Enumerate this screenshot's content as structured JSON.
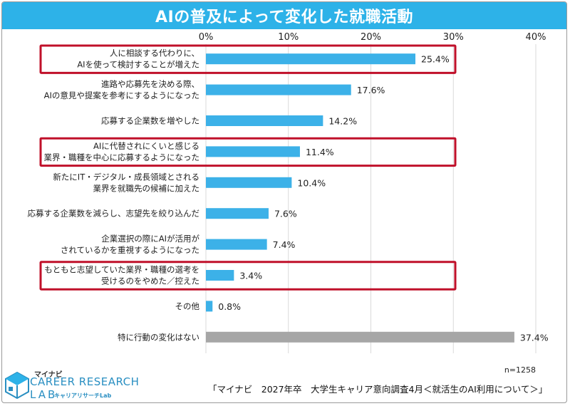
{
  "title": "AIの普及によって変化した就職活動",
  "n_label": "n=1258",
  "source": "「マイナビ　2027年卒　大学生キャリア意向調査4月＜就活生のAI利用について＞」",
  "logo": {
    "small": "マイナビ",
    "main": "CAREER RESEARCH",
    "lab": "LAB",
    "jp": "キャリアリサーチLab"
  },
  "colors": {
    "title_bg": "#2db2e8",
    "bar": "#3cb1e8",
    "bar_other": "#a6a6a6",
    "highlight": "#c0102a",
    "grid": "#d9d9d9"
  },
  "chart_data": {
    "type": "bar",
    "orientation": "horizontal",
    "xlim": [
      0,
      40
    ],
    "ticks": [
      "0%",
      "10%",
      "20%",
      "30%",
      "40%"
    ],
    "tick_values": [
      0,
      10,
      20,
      30,
      40
    ],
    "categories": [
      [
        "人に相談する代わりに、",
        "AIを使って検討することが増えた"
      ],
      [
        "進路や応募先を決める際、",
        "AIの意見や提案を参考にするようになった"
      ],
      [
        "応募する企業数を増やした"
      ],
      [
        "AIに代替されにくいと感じる",
        "業界・職種を中心に応募するようになった"
      ],
      [
        "新たにIT・デジタル・成長領域とされる",
        "業界を就職先の候補に加えた"
      ],
      [
        "応募する企業数を減らし、志望先を絞り込んだ"
      ],
      [
        "企業選択の際にAIが活用が",
        "されているかを重視するようになった"
      ],
      [
        "もともと志望していた業界・職種の選考を",
        "受けるのをやめた／控えた"
      ],
      [
        "その他"
      ],
      [
        "特に行動の変化はない"
      ]
    ],
    "values": [
      25.4,
      17.6,
      14.2,
      11.4,
      10.4,
      7.6,
      7.4,
      3.4,
      0.8,
      37.4
    ],
    "value_labels": [
      "25.4%",
      "17.6%",
      "14.2%",
      "11.4%",
      "10.4%",
      "7.6%",
      "7.4%",
      "3.4%",
      "0.8%",
      "37.4%"
    ],
    "gray_bars": [
      9
    ],
    "highlighted": [
      0,
      3,
      7
    ]
  }
}
